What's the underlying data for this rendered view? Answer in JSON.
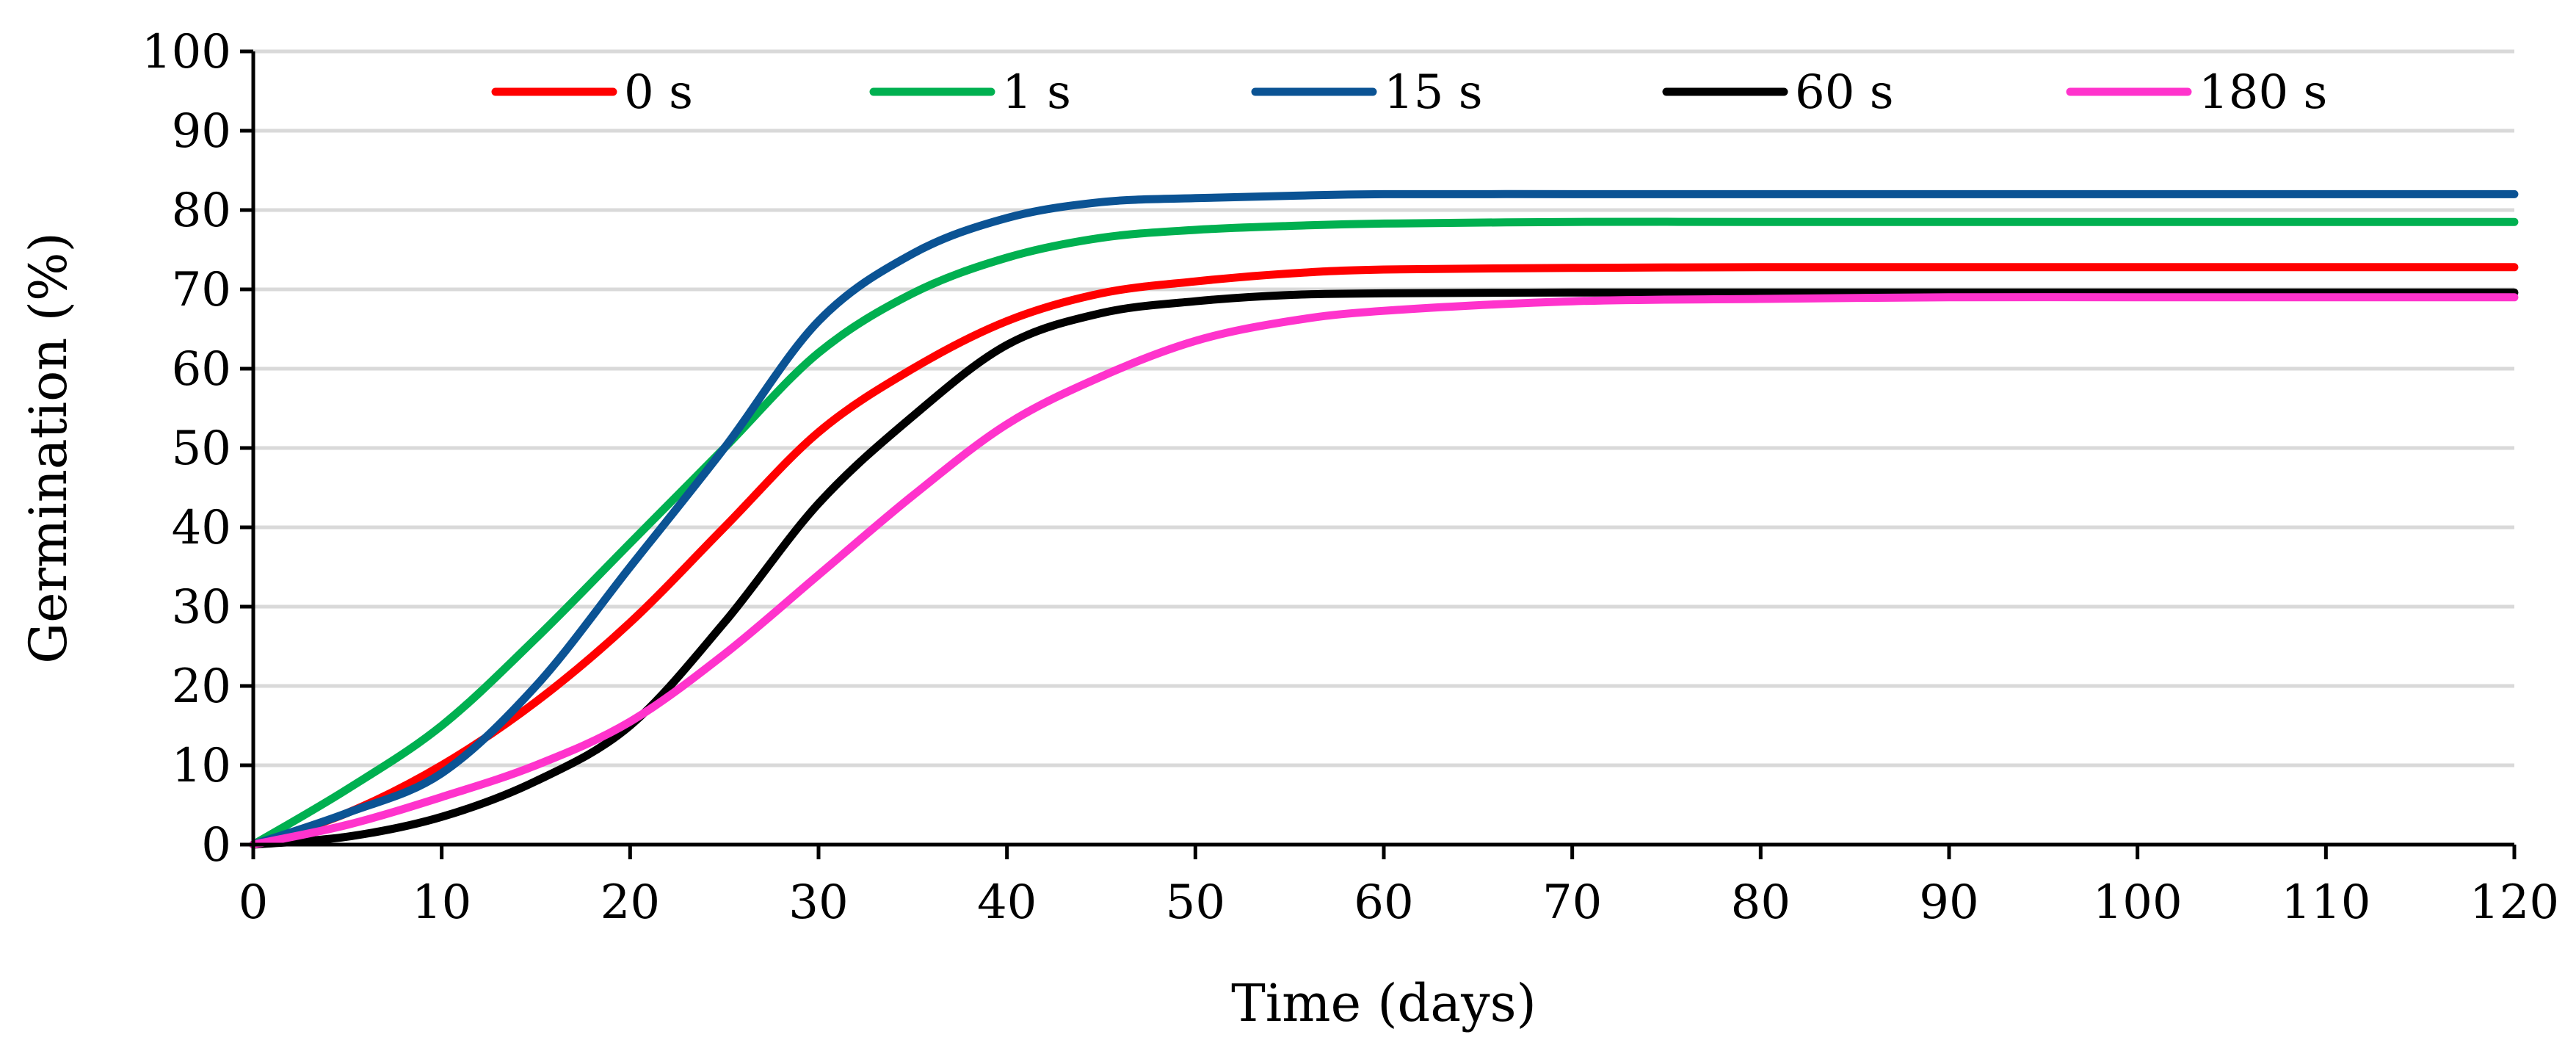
{
  "chart_data": {
    "type": "line",
    "title": "",
    "xlabel": "Time (days)",
    "ylabel": "Germination (%)",
    "xlim": [
      0,
      120
    ],
    "ylim": [
      0,
      100
    ],
    "x_ticks": [
      "0",
      "10",
      "20",
      "30",
      "40",
      "50",
      "60",
      "70",
      "80",
      "90",
      "100",
      "110",
      "120"
    ],
    "y_ticks": [
      "0",
      "10",
      "20",
      "30",
      "40",
      "50",
      "60",
      "70",
      "80",
      "90",
      "100"
    ],
    "grid": "horizontal",
    "legend_position": "top",
    "series": [
      {
        "name": "0 s",
        "color": "#ff0000",
        "points": [
          [
            0,
            0
          ],
          [
            5,
            4
          ],
          [
            10,
            10
          ],
          [
            15,
            18
          ],
          [
            20,
            28
          ],
          [
            25,
            40
          ],
          [
            30,
            52
          ],
          [
            35,
            60
          ],
          [
            40,
            66
          ],
          [
            45,
            69.5
          ],
          [
            50,
            71
          ],
          [
            55,
            72
          ],
          [
            60,
            72.5
          ],
          [
            70,
            72.7
          ],
          [
            80,
            72.8
          ],
          [
            90,
            72.8
          ],
          [
            100,
            72.8
          ],
          [
            110,
            72.8
          ],
          [
            120,
            72.8
          ]
        ]
      },
      {
        "name": "1 s",
        "color": "#00b050",
        "points": [
          [
            0,
            0
          ],
          [
            5,
            7
          ],
          [
            10,
            15
          ],
          [
            15,
            26
          ],
          [
            20,
            38
          ],
          [
            25,
            50
          ],
          [
            30,
            62
          ],
          [
            35,
            69.5
          ],
          [
            40,
            74
          ],
          [
            45,
            76.5
          ],
          [
            50,
            77.5
          ],
          [
            55,
            78
          ],
          [
            60,
            78.3
          ],
          [
            70,
            78.5
          ],
          [
            80,
            78.5
          ],
          [
            90,
            78.5
          ],
          [
            100,
            78.5
          ],
          [
            110,
            78.5
          ],
          [
            120,
            78.5
          ]
        ]
      },
      {
        "name": "15 s",
        "color": "#0b5394",
        "points": [
          [
            0,
            0
          ],
          [
            5,
            4
          ],
          [
            10,
            9
          ],
          [
            15,
            20
          ],
          [
            20,
            35
          ],
          [
            25,
            50
          ],
          [
            30,
            66
          ],
          [
            35,
            74.5
          ],
          [
            40,
            79
          ],
          [
            45,
            81
          ],
          [
            50,
            81.5
          ],
          [
            55,
            81.8
          ],
          [
            60,
            82
          ],
          [
            70,
            82
          ],
          [
            80,
            82
          ],
          [
            90,
            82
          ],
          [
            100,
            82
          ],
          [
            110,
            82
          ],
          [
            120,
            82
          ]
        ]
      },
      {
        "name": "60 s",
        "color": "#000000",
        "points": [
          [
            0,
            0
          ],
          [
            5,
            1
          ],
          [
            10,
            3.5
          ],
          [
            15,
            8
          ],
          [
            20,
            15
          ],
          [
            25,
            28
          ],
          [
            30,
            43
          ],
          [
            35,
            54
          ],
          [
            40,
            63
          ],
          [
            45,
            67
          ],
          [
            50,
            68.5
          ],
          [
            55,
            69.3
          ],
          [
            60,
            69.5
          ],
          [
            70,
            69.6
          ],
          [
            80,
            69.6
          ],
          [
            90,
            69.6
          ],
          [
            100,
            69.6
          ],
          [
            110,
            69.6
          ],
          [
            120,
            69.6
          ]
        ]
      },
      {
        "name": "180 s",
        "color": "#ff33cc",
        "points": [
          [
            0,
            0
          ],
          [
            5,
            2.5
          ],
          [
            10,
            6
          ],
          [
            15,
            10
          ],
          [
            20,
            15.5
          ],
          [
            25,
            24
          ],
          [
            30,
            34
          ],
          [
            35,
            44
          ],
          [
            40,
            53
          ],
          [
            45,
            59
          ],
          [
            50,
            63.5
          ],
          [
            55,
            66
          ],
          [
            60,
            67.3
          ],
          [
            70,
            68.5
          ],
          [
            80,
            68.8
          ],
          [
            90,
            69
          ],
          [
            100,
            69
          ],
          [
            110,
            69
          ],
          [
            120,
            69
          ]
        ]
      }
    ]
  }
}
